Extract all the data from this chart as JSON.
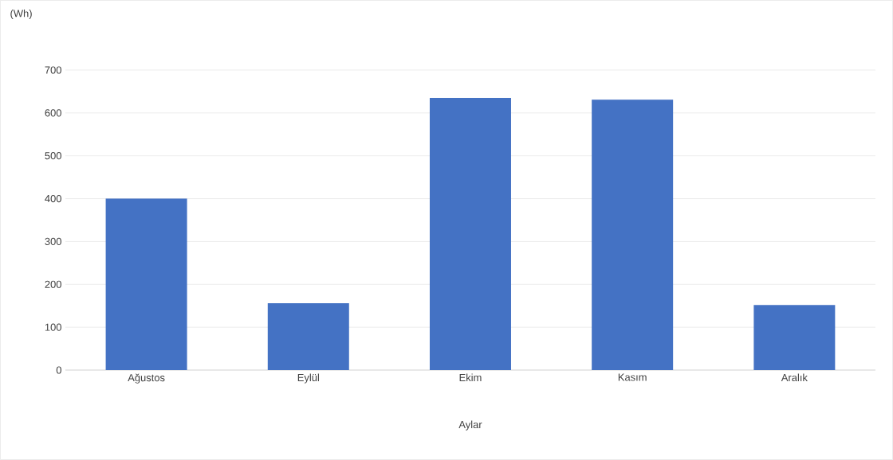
{
  "chart_data": {
    "type": "bar",
    "ylabel": "(Wh)",
    "xlabel": "Aylar",
    "categories": [
      "Ağustos",
      "Eylül",
      "Ekim",
      "Kasım",
      "Aralık"
    ],
    "values": [
      400,
      156,
      635,
      631,
      152
    ],
    "color": "#4472c4",
    "ylim": [
      0,
      700
    ],
    "yticks": [
      0,
      100,
      200,
      300,
      400,
      500,
      600,
      700
    ],
    "grid": "y"
  }
}
